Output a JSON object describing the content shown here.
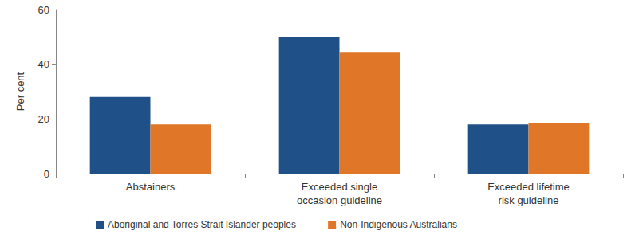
{
  "chart_data": {
    "type": "bar",
    "y_label": "Per cent",
    "categories": [
      "Abstainers",
      "Exceeded single\noccasion guideline",
      "Exceeded lifetime\nrisk guideline"
    ],
    "series": [
      {
        "name": "Aboriginal and Torres Strait Islander peoples",
        "color": "#1f5088",
        "values": [
          28,
          50,
          18
        ]
      },
      {
        "name": "Non-Indigenous Australians",
        "color": "#e07627",
        "values": [
          18,
          44.5,
          18.5
        ]
      }
    ],
    "ylim": [
      0,
      60
    ],
    "yticks": [
      0,
      20,
      40,
      60
    ],
    "grid": false,
    "legend": "bottom"
  }
}
